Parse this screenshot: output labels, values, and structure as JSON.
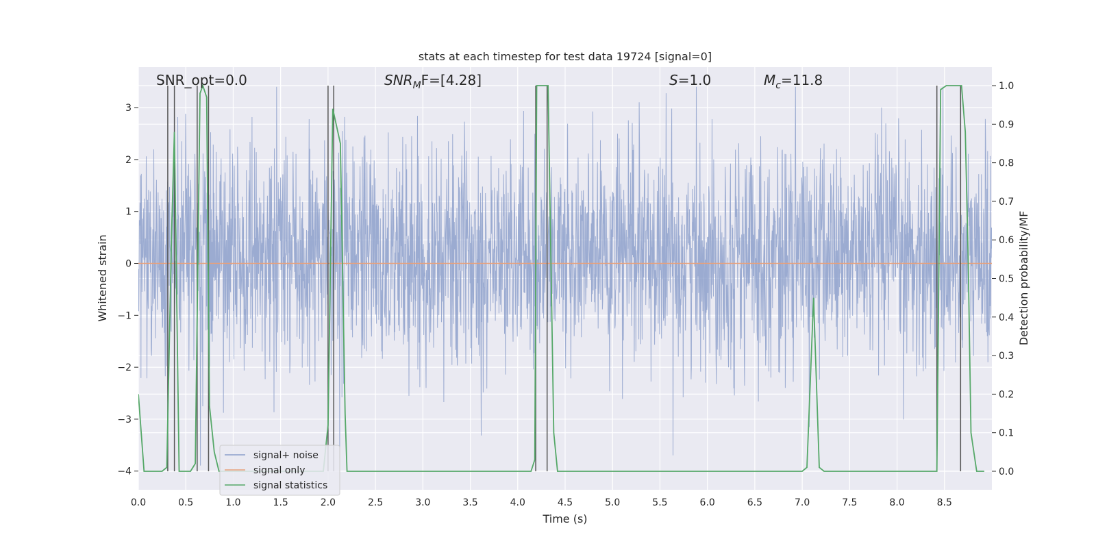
{
  "chart_data": {
    "type": "line",
    "title": "stats at each timestep for test data 19724 [signal=0]",
    "xlabel": "Time (s)",
    "ylabel_left": "Whitened strain",
    "ylabel_right": "Detection probability/MF",
    "xlim": [
      0.0,
      9.0
    ],
    "ylim_left": [
      -4.36,
      3.78
    ],
    "ylim_right": [
      -0.048,
      1.048
    ],
    "x_ticks": [
      "0.0",
      "0.5",
      "1.0",
      "1.5",
      "2.0",
      "2.5",
      "3.0",
      "3.5",
      "4.0",
      "4.5",
      "5.0",
      "5.5",
      "6.0",
      "6.5",
      "7.0",
      "7.5",
      "8.0",
      "8.5"
    ],
    "y_left_ticks": [
      "3",
      "2",
      "1",
      "0",
      "−1",
      "−2",
      "−3",
      "−4"
    ],
    "y_right_ticks": [
      "1.0",
      "0.9",
      "0.8",
      "0.7",
      "0.6",
      "0.5",
      "0.4",
      "0.3",
      "0.2",
      "0.1",
      "0.0"
    ],
    "grid": true,
    "legend_placement": "lower-left",
    "annotations": {
      "snr_opt": "SNR_opt=0.0",
      "snr_mf_symbol": "SNR",
      "snr_mf_sub": "M",
      "snr_mf_rest": "F=[4.28]",
      "s_symbol": "S",
      "s_rest": "=1.0",
      "mc_symbol": "M",
      "mc_sub": "c",
      "mc_rest": "=11.8"
    },
    "series": [
      {
        "name": "signal+ noise",
        "color": "#8da0cb",
        "description_range": [
          -4.0,
          3.4
        ],
        "typical_band": [
          -1.7,
          2.0
        ]
      },
      {
        "name": "signal only",
        "color": "#e8a07a",
        "x": [
          0.0,
          9.0
        ],
        "y": [
          0.0,
          0.0
        ]
      },
      {
        "name": "signal statistics",
        "color": "#55a868",
        "x": [
          0.0,
          0.06,
          0.25,
          0.3,
          0.35,
          0.38,
          0.43,
          0.55,
          0.6,
          0.65,
          0.68,
          0.72,
          0.75,
          0.8,
          0.85,
          1.95,
          2.0,
          2.05,
          2.13,
          2.18,
          2.2,
          4.14,
          4.18,
          4.2,
          4.25,
          4.32,
          4.38,
          4.42,
          7.0,
          7.05,
          7.12,
          7.18,
          7.23,
          8.42,
          8.46,
          8.52,
          8.6,
          8.68,
          8.72,
          8.75,
          8.78,
          8.84,
          8.92
        ],
        "y": [
          0.2,
          0.0,
          0.0,
          0.01,
          0.62,
          0.88,
          0.0,
          0.0,
          0.02,
          0.98,
          1.0,
          0.97,
          0.17,
          0.05,
          0.0,
          0.0,
          0.12,
          0.94,
          0.85,
          0.15,
          0.0,
          0.0,
          0.03,
          1.0,
          1.0,
          1.0,
          0.1,
          0.0,
          0.0,
          0.01,
          0.45,
          0.01,
          0.0,
          0.0,
          0.99,
          1.0,
          1.0,
          1.0,
          0.88,
          0.55,
          0.1,
          0.0,
          0.0
        ]
      }
    ],
    "vertical_markers_x": [
      0.31,
      0.38,
      0.62,
      0.74,
      2.0,
      2.06,
      4.19,
      4.31,
      8.42,
      8.67
    ]
  }
}
